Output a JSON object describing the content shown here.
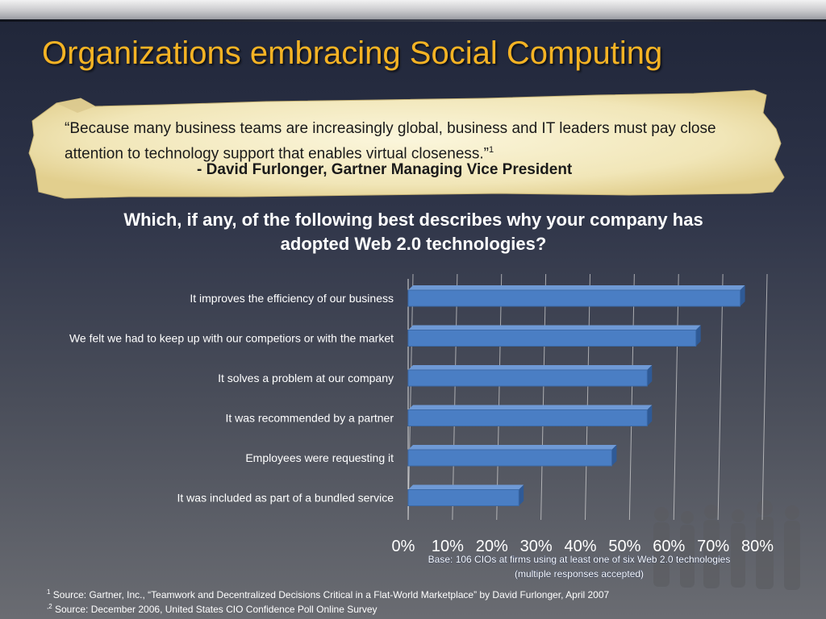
{
  "title": "Organizations embracing Social Computing",
  "quote": {
    "text": "“Because many business teams are increasingly global, business and IT leaders must pay close attention to technology support that enables virtual closeness.”",
    "superscript": "1",
    "author": "- David Furlonger, Gartner Managing Vice President"
  },
  "chart_data": {
    "type": "bar",
    "orientation": "horizontal",
    "title": "Which, if any, of the following best describes why your company has adopted Web 2.0 technologies?",
    "categories": [
      "It improves the efficiency of our business",
      "We felt we had to keep up with our competiors or with the market",
      "It solves a problem at our company",
      "It was recommended by a partner",
      "Employees were requesting it",
      "It was included as part of a bundled service"
    ],
    "values": [
      75,
      65,
      54,
      54,
      46,
      25
    ],
    "xlim": [
      0,
      80
    ],
    "xticks": [
      "0%",
      "10%",
      "20%",
      "30%",
      "40%",
      "50%",
      "60%",
      "70%",
      "80%"
    ],
    "grid": true,
    "bar_color": "#4a7ec4",
    "base_note_line1": "Base: 106 CIOs at firms using at least one of six Web 2.0 technologies",
    "base_note_line2": "(multiple responses accepted)"
  },
  "footer": {
    "line1_sup": "1",
    "line1": " Source:   Gartner, Inc., “Teamwork and Decentralized Decisions Critical in a Flat-World Marketplace” by David Furlonger, April 2007",
    "line2_sup": ",2",
    "line2": " Source:  December 2006, United States CIO Confidence Poll Online Survey"
  },
  "colors": {
    "title": "#f5b324",
    "paper": "#f4ecc4",
    "bar": "#4a7ec4"
  }
}
